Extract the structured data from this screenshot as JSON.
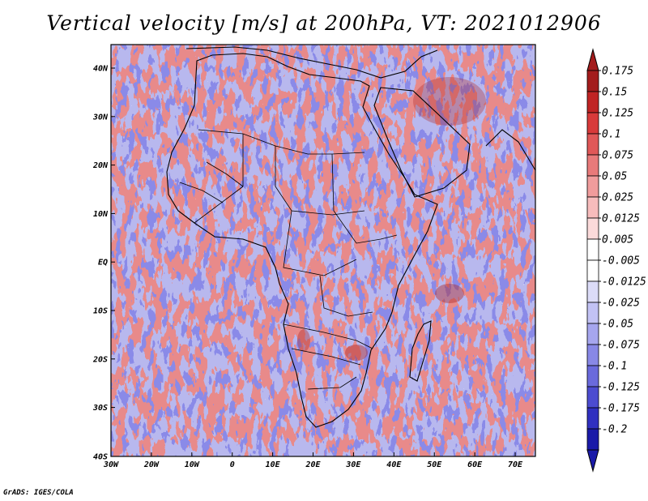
{
  "title": "Vertical velocity [m/s] at 200hPa, VT: 2021012906",
  "credit": "GrADS: IGES/COLA",
  "lat_ticks": [
    "40N",
    "30N",
    "20N",
    "10N",
    "EQ",
    "10S",
    "20S",
    "30S",
    "40S"
  ],
  "lon_ticks": [
    "30W",
    "20W",
    "10W",
    "0",
    "10E",
    "20E",
    "30E",
    "40E",
    "50E",
    "60E",
    "70E"
  ],
  "extent": {
    "lon": [
      -30,
      75
    ],
    "lat": [
      -40,
      45
    ]
  },
  "colorbar": {
    "labels": [
      "0.175",
      "0.15",
      "0.125",
      "0.1",
      "0.075",
      "0.05",
      "0.025",
      "0.0125",
      "0.005",
      "-0.005",
      "-0.0125",
      "-0.025",
      "-0.05",
      "-0.075",
      "-0.1",
      "-0.125",
      "-0.175",
      "-0.2"
    ],
    "colors": [
      "#a31c1c",
      "#c02424",
      "#d83a3a",
      "#e05858",
      "#e87a7a",
      "#f09c9c",
      "#f7bcbc",
      "#fbdada",
      "#ffffff",
      "#ffffff",
      "#dcdcf8",
      "#c2c2f4",
      "#a6a6ee",
      "#8888e6",
      "#6a6adc",
      "#4c4cd0",
      "#3030c0",
      "#1a1aa8"
    ],
    "top_arrow_color": "#a31c1c",
    "bottom_arrow_color": "#1a1aa8"
  },
  "colors": {
    "positive": "#e06060",
    "negative": "#6060e0",
    "coast": "#000000"
  }
}
